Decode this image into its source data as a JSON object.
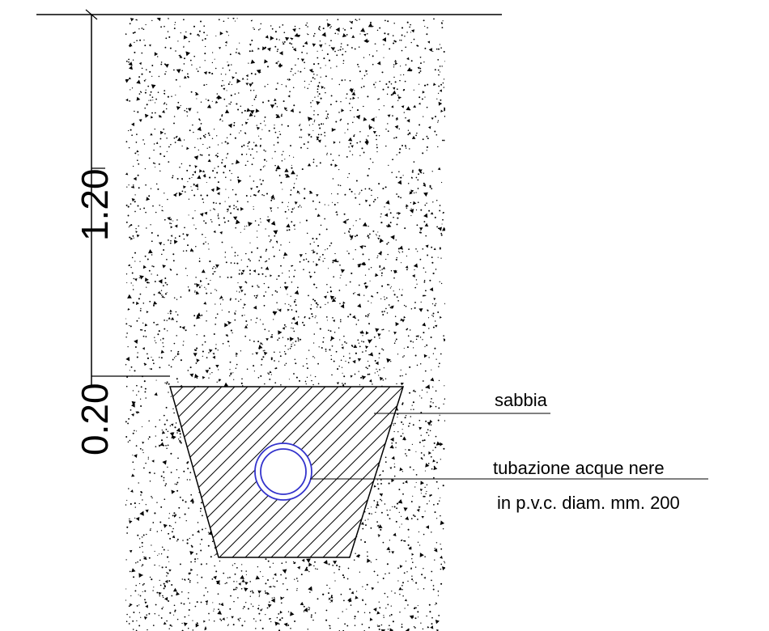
{
  "dimensions": {
    "depth_upper": "1.20",
    "depth_lower": "0.20"
  },
  "labels": {
    "sand": "sabbia",
    "pipe_line1": "tubazione acque nere",
    "pipe_line2": "in p.v.c. diam. mm. 200"
  },
  "colors": {
    "line": "#000000",
    "pipe": "#3333cc"
  },
  "icons": [
    "stipple-soil-texture",
    "hatch-pattern",
    "pipe-circle-icon"
  ]
}
